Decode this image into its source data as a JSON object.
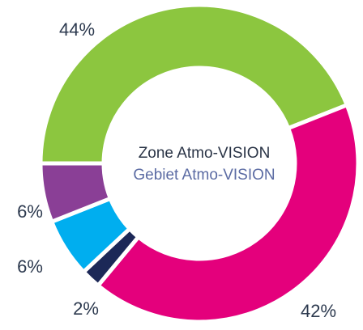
{
  "chart_data": {
    "type": "donut",
    "center_labels": [
      "Zone Atmo-VISION",
      "Gebiet Atmo-VISION"
    ],
    "categories": [
      null,
      null,
      null,
      null,
      null
    ],
    "values": [
      44,
      42,
      2,
      6,
      6
    ],
    "value_labels": [
      "44%",
      "42%",
      "2%",
      "6%",
      "6%"
    ],
    "colors": [
      "#8cc63f",
      "#e4007c",
      "#1c2857",
      "#00aeef",
      "#8a3f96"
    ]
  }
}
